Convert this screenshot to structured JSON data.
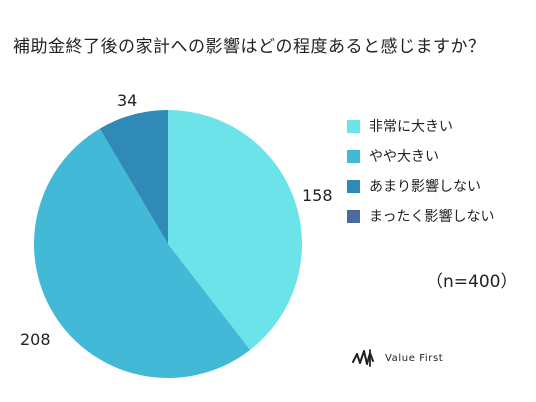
{
  "title": "補助金終了後の家計への影響はどの程度あると感じますか？",
  "sample_label": "（n=400）",
  "logo_text": "Value First",
  "colors": {
    "非常に大きい": "#6be3e8",
    "やや大きい": "#42b9d6",
    "あまり影響しない": "#2f8ab8",
    "まったく影響しない": "#4a6b9c"
  },
  "chart_data": {
    "type": "pie",
    "title": "補助金終了後の家計への影響はどの程度あると感じますか？",
    "labels": [
      "非常に大きい",
      "やや大きい",
      "あまり影響しない",
      "まったく影響しない"
    ],
    "values": [
      158,
      208,
      34,
      0
    ],
    "legend_position": "right"
  }
}
